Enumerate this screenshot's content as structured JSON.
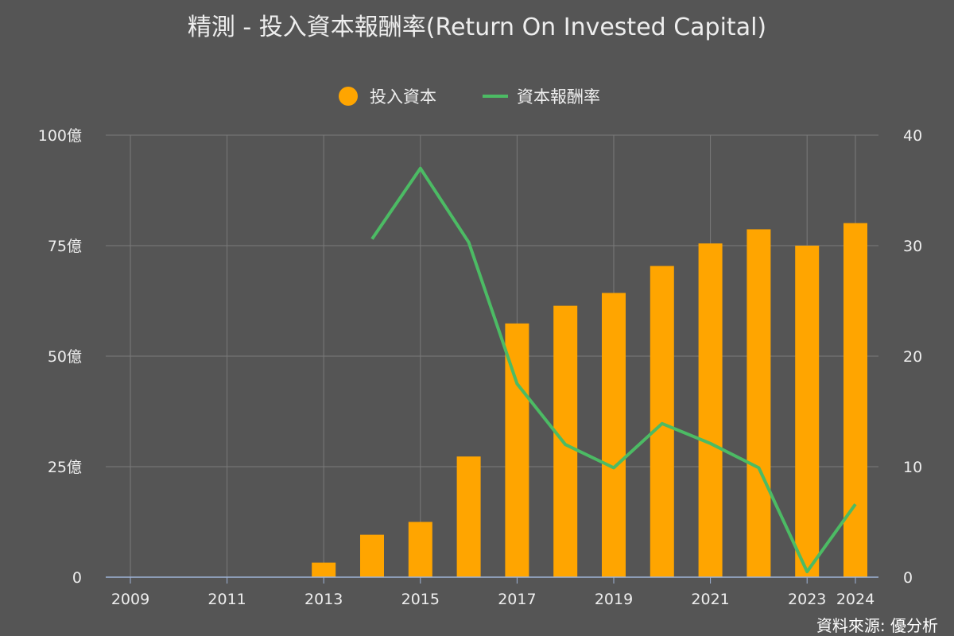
{
  "chart_data": {
    "type": "bar+line",
    "title": "精測 - 投入資本報酬率(Return On Invested Capital)",
    "legend": {
      "placement": "top-center"
    },
    "grid": true,
    "x": [
      2009,
      2010,
      2011,
      2012,
      2013,
      2014,
      2015,
      2016,
      2017,
      2018,
      2019,
      2020,
      2021,
      2022,
      2023,
      2024
    ],
    "x_tick_labels": [
      "2009",
      "2011",
      "2013",
      "2015",
      "2017",
      "2019",
      "2021",
      "2023",
      "2024"
    ],
    "x_ticks": [
      2009,
      2011,
      2013,
      2015,
      2017,
      2019,
      2021,
      2023,
      2024
    ],
    "y_left": {
      "range": [
        0,
        100
      ],
      "ticks": [
        0,
        25,
        50,
        75,
        100
      ],
      "tick_labels": [
        "0",
        "25億",
        "50億",
        "75億",
        "100億"
      ]
    },
    "y_right": {
      "range": [
        0,
        40
      ],
      "ticks": [
        0,
        10,
        20,
        30,
        40
      ],
      "tick_labels": [
        "0",
        "10",
        "20",
        "30",
        "40"
      ]
    },
    "series": [
      {
        "name": "投入資本",
        "type": "bar",
        "axis": "left",
        "color": "#FFA500",
        "values": [
          null,
          null,
          null,
          null,
          3.3,
          9.6,
          12.5,
          27.3,
          57.4,
          61.4,
          64.3,
          70.4,
          75.5,
          78.7,
          75.0,
          80.1
        ]
      },
      {
        "name": "資本報酬率",
        "type": "line",
        "axis": "right",
        "color": "#4CBB64",
        "values": [
          null,
          null,
          null,
          null,
          null,
          30.6,
          37.0,
          30.3,
          17.5,
          12.0,
          9.9,
          13.9,
          12.1,
          9.9,
          0.5,
          6.6
        ]
      }
    ]
  },
  "source_label": "資料來源: 優分析"
}
